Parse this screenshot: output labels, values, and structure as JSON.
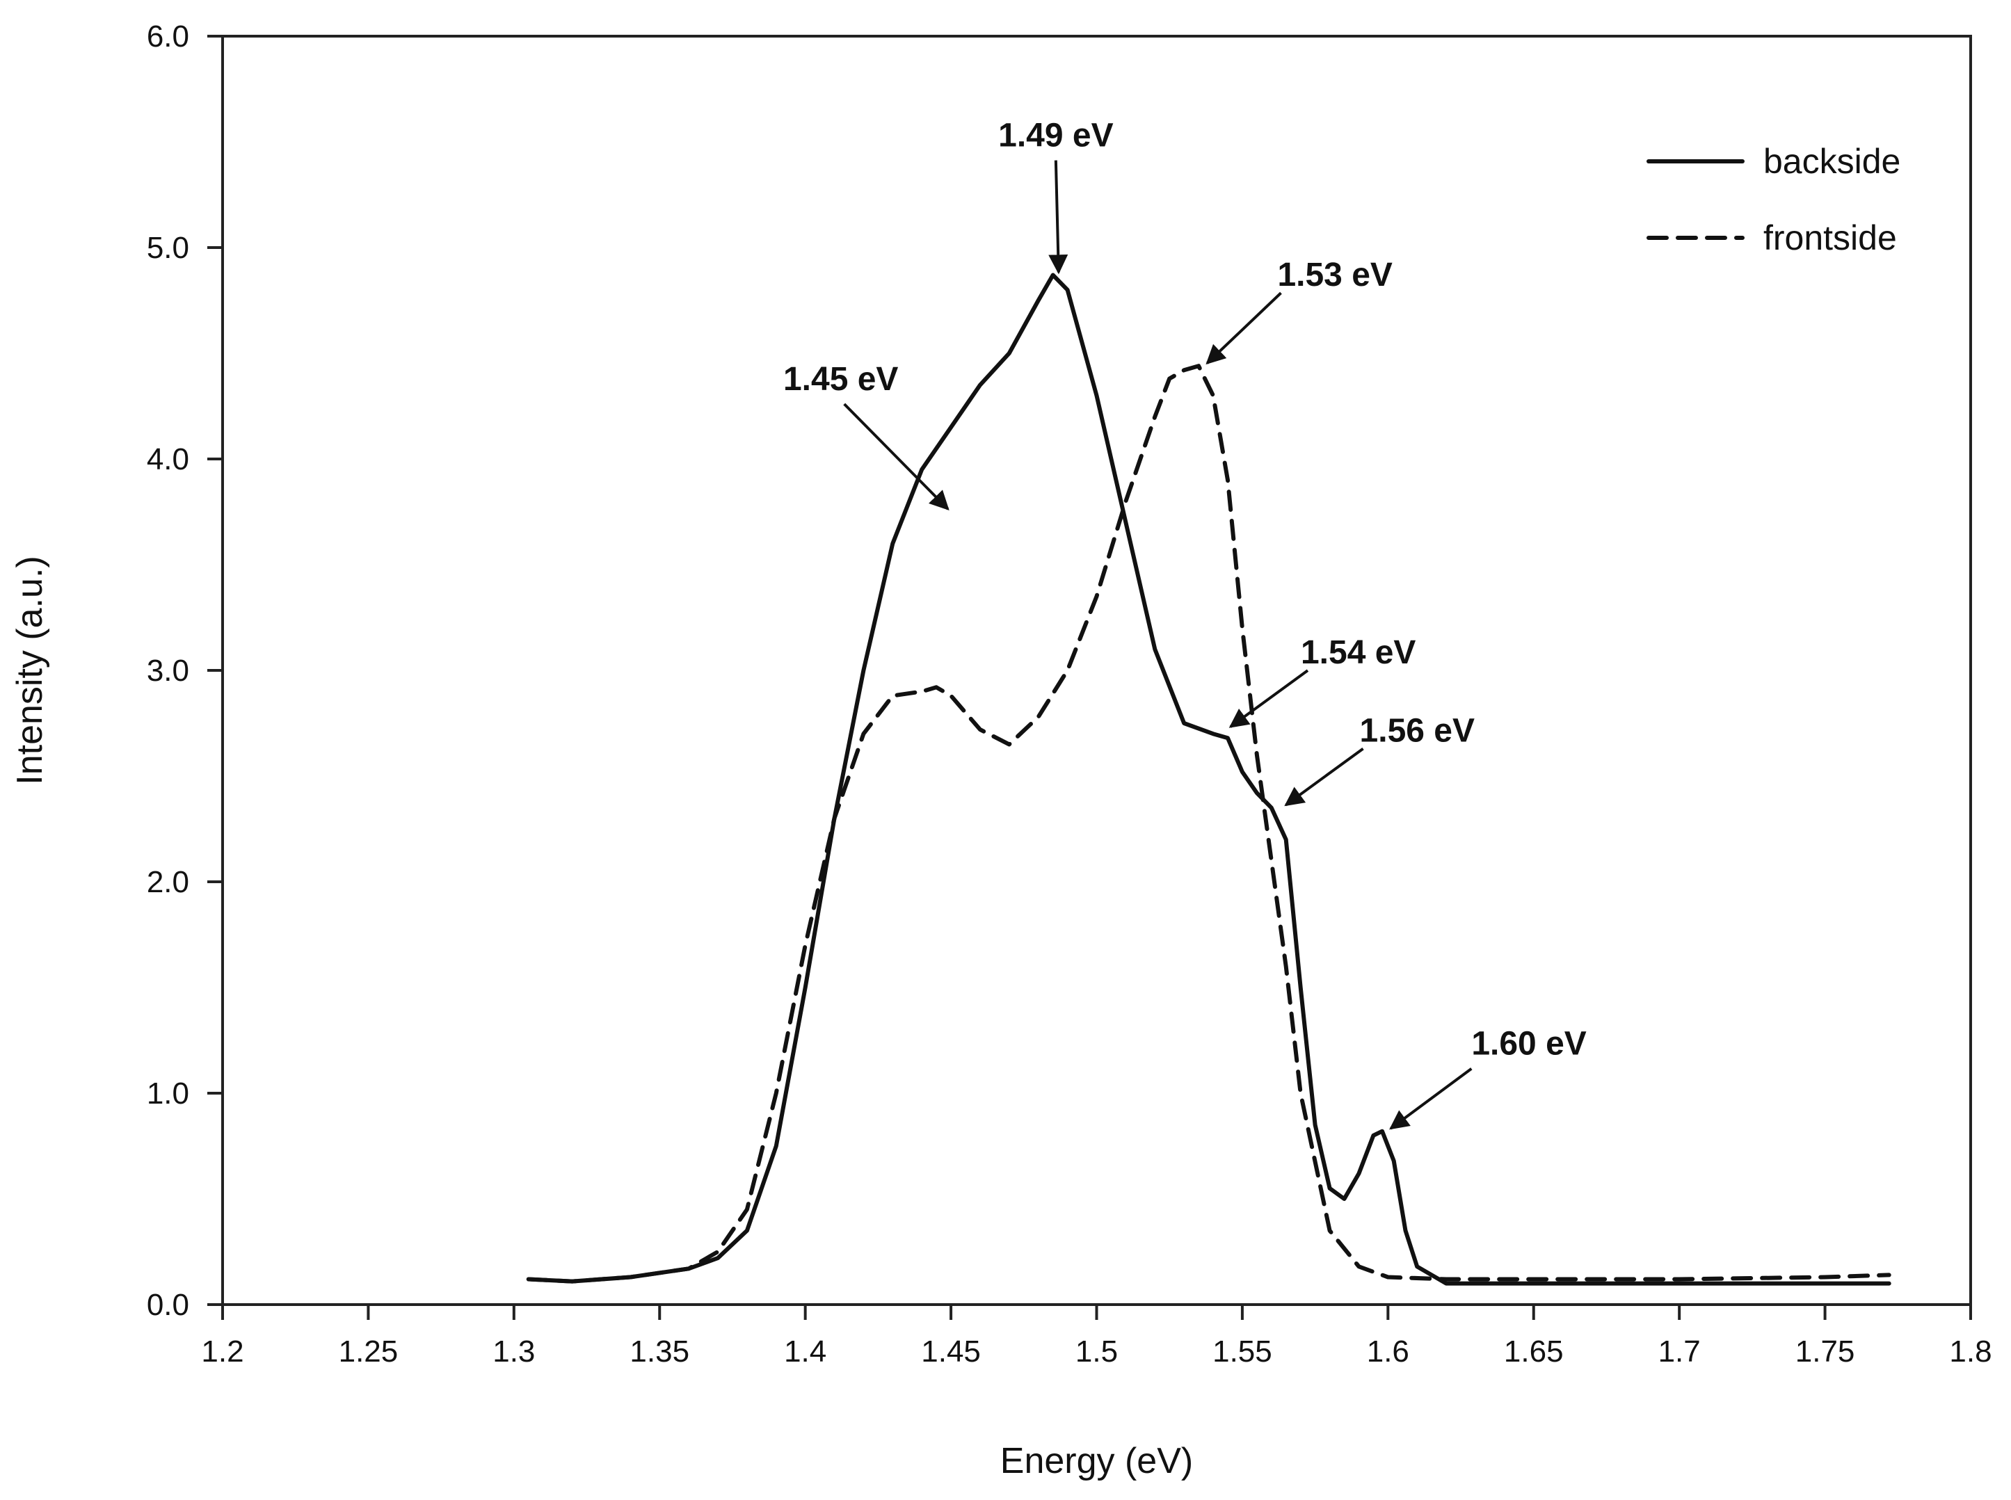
{
  "chart_data": {
    "type": "line",
    "title": "",
    "xlabel": "Energy  (eV)",
    "ylabel": "Intensity (a.u.)",
    "xlim": [
      1.2,
      1.8
    ],
    "ylim": [
      0.0,
      6.0
    ],
    "x_ticks": [
      1.2,
      1.25,
      1.3,
      1.35,
      1.4,
      1.45,
      1.5,
      1.55,
      1.6,
      1.65,
      1.7,
      1.75,
      1.8
    ],
    "x_tick_labels": [
      "1.2",
      "1.25",
      "1.3",
      "1.35",
      "1.4",
      "1.45",
      "1.5",
      "1.55",
      "1.6",
      "1.65",
      "1.7",
      "1.75",
      "1.8"
    ],
    "y_ticks": [
      0,
      1,
      2,
      3,
      4,
      5,
      6
    ],
    "y_tick_labels": [
      "0.0",
      "1.0",
      "2.0",
      "3.0",
      "4.0",
      "5.0",
      "6.0"
    ],
    "grid": false,
    "legend_position": "top-right",
    "series": [
      {
        "name": "backside",
        "line_style": "solid",
        "color": "#111111",
        "x": [
          1.305,
          1.32,
          1.34,
          1.36,
          1.37,
          1.38,
          1.39,
          1.4,
          1.41,
          1.42,
          1.43,
          1.44,
          1.45,
          1.46,
          1.47,
          1.48,
          1.485,
          1.49,
          1.5,
          1.51,
          1.52,
          1.53,
          1.54,
          1.545,
          1.55,
          1.555,
          1.56,
          1.565,
          1.57,
          1.575,
          1.58,
          1.585,
          1.59,
          1.595,
          1.598,
          1.602,
          1.606,
          1.61,
          1.62,
          1.65,
          1.7,
          1.75,
          1.772
        ],
        "y": [
          0.12,
          0.11,
          0.13,
          0.17,
          0.22,
          0.35,
          0.75,
          1.5,
          2.3,
          3.0,
          3.6,
          3.95,
          4.15,
          4.35,
          4.5,
          4.75,
          4.87,
          4.8,
          4.3,
          3.7,
          3.1,
          2.75,
          2.7,
          2.68,
          2.52,
          2.42,
          2.35,
          2.2,
          1.5,
          0.85,
          0.55,
          0.5,
          0.62,
          0.8,
          0.82,
          0.68,
          0.35,
          0.18,
          0.1,
          0.1,
          0.1,
          0.1,
          0.1
        ]
      },
      {
        "name": "frontside",
        "line_style": "dashed",
        "color": "#111111",
        "x": [
          1.305,
          1.32,
          1.34,
          1.36,
          1.37,
          1.38,
          1.39,
          1.4,
          1.41,
          1.42,
          1.43,
          1.44,
          1.445,
          1.45,
          1.46,
          1.47,
          1.48,
          1.49,
          1.5,
          1.51,
          1.52,
          1.525,
          1.53,
          1.535,
          1.54,
          1.545,
          1.55,
          1.555,
          1.56,
          1.565,
          1.57,
          1.58,
          1.59,
          1.6,
          1.62,
          1.65,
          1.7,
          1.75,
          1.772
        ],
        "y": [
          0.12,
          0.11,
          0.13,
          0.17,
          0.25,
          0.45,
          1.0,
          1.7,
          2.3,
          2.7,
          2.88,
          2.9,
          2.92,
          2.88,
          2.72,
          2.65,
          2.78,
          3.0,
          3.35,
          3.8,
          4.2,
          4.38,
          4.42,
          4.44,
          4.3,
          3.9,
          3.2,
          2.6,
          2.1,
          1.6,
          1.0,
          0.35,
          0.18,
          0.13,
          0.12,
          0.12,
          0.12,
          0.13,
          0.14
        ]
      }
    ],
    "annotations": [
      {
        "text": "1.49 eV",
        "x": 1.486,
        "y": 4.87
      },
      {
        "text": "1.53 eV",
        "x": 1.537,
        "y": 4.44
      },
      {
        "text": "1.45 eV",
        "x": 1.448,
        "y": 3.75
      },
      {
        "text": "1.54 eV",
        "x": 1.545,
        "y": 2.72
      },
      {
        "text": "1.56 eV",
        "x": 1.564,
        "y": 2.35
      },
      {
        "text": "1.60 eV",
        "x": 1.6,
        "y": 0.82
      }
    ]
  }
}
